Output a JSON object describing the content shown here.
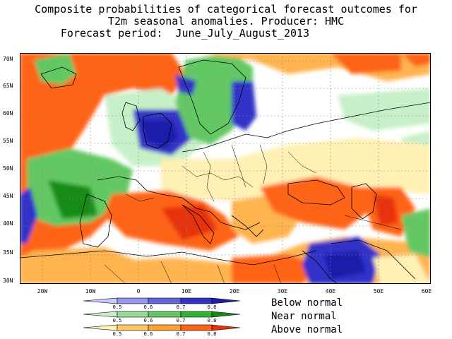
{
  "title": {
    "line1": "Composite probabilities of categorical forecast outcomes for",
    "line2": "T2m seasonal anomalies. Producer: HMC",
    "line3": "Forecast period:  June_July_August_2013"
  },
  "axes": {
    "lat_labels": [
      "70N",
      "65N",
      "60N",
      "55N",
      "50N",
      "45N",
      "40N",
      "35N",
      "30N"
    ],
    "lon_labels": [
      "20W",
      "10W",
      "0",
      "10E",
      "20E",
      "30E",
      "40E",
      "50E",
      "60E"
    ]
  },
  "legend": {
    "below": {
      "label": "Below normal",
      "ticks": [
        "0.5",
        "0.6",
        "0.7",
        "0.8"
      ],
      "colors": [
        "#c8c8ff",
        "#9696f0",
        "#6464dc",
        "#3232c8",
        "#1e1eaa"
      ]
    },
    "near": {
      "label": "Near normal",
      "ticks": [
        "0.5",
        "0.6",
        "0.7",
        "0.8"
      ],
      "colors": [
        "#c8f0c8",
        "#96dc96",
        "#64c864",
        "#32b432",
        "#148c14"
      ]
    },
    "above": {
      "label": "Above normal",
      "ticks": [
        "0.5",
        "0.6",
        "0.7",
        "0.8"
      ],
      "colors": [
        "#fff0b4",
        "#ffc864",
        "#ffa032",
        "#ff6414",
        "#e6320a"
      ]
    }
  },
  "colors": {
    "above_low": "#fff0b4",
    "above_mid": "#ffb450",
    "above_high": "#ff6414",
    "above_max": "#e6320a",
    "near_low": "#c8f0c8",
    "near_mid": "#64c864",
    "near_high": "#148c14",
    "below_low": "#c8c8ff",
    "below_mid": "#6464dc",
    "below_high": "#1e1eaa"
  }
}
